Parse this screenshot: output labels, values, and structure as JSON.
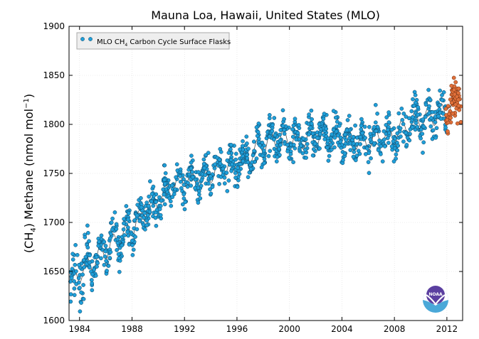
{
  "chart_data": {
    "type": "scatter",
    "title": "Mauna Loa, Hawaii, United States (MLO)",
    "ylabel_parts": {
      "a": "(CH",
      "b": "4",
      "c": ") Methane (nmol mol",
      "d": "−1",
      "e": ")"
    },
    "xlabel": "",
    "xlim": [
      1983.2,
      2013.2
    ],
    "ylim": [
      1600,
      1900
    ],
    "xticks": [
      "1984",
      "1988",
      "1992",
      "1996",
      "2000",
      "2004",
      "2008",
      "2012"
    ],
    "xtick_values": [
      1984,
      1988,
      1992,
      1996,
      2000,
      2004,
      2008,
      2012
    ],
    "yticks": [
      "1600",
      "1650",
      "1700",
      "1750",
      "1800",
      "1850",
      "1900"
    ],
    "ytick_values": [
      1600,
      1650,
      1700,
      1750,
      1800,
      1850,
      1900
    ],
    "grid": true,
    "legend": {
      "placement": "top-left",
      "label_parts": {
        "a": "MLO CH",
        "b": "4",
        "c": " Carbon Cycle Surface Flasks"
      }
    },
    "trend_anchors": {
      "x": [
        1983.3,
        1984,
        1985,
        1986,
        1987,
        1988,
        1989,
        1990,
        1991,
        1992,
        1993,
        1994,
        1995,
        1996,
        1997,
        1998,
        1999,
        2000,
        2001,
        2002,
        2003,
        2004,
        2005,
        2006,
        2007,
        2008,
        2009,
        2010,
        2011,
        2012,
        2013
      ],
      "y": [
        1640,
        1648,
        1660,
        1672,
        1684,
        1695,
        1710,
        1722,
        1735,
        1746,
        1742,
        1750,
        1755,
        1760,
        1770,
        1780,
        1786,
        1785,
        1784,
        1786,
        1790,
        1785,
        1784,
        1782,
        1788,
        1790,
        1800,
        1806,
        1808,
        1815,
        1825
      ]
    },
    "series": [
      {
        "name": "MLO CH4 Carbon Cycle Surface Flasks",
        "color": "#1f9fd9",
        "range": [
          1983.3,
          2012.0
        ]
      },
      {
        "color": "#e0703a",
        "range": [
          2011.9,
          2013.1
        ]
      }
    ],
    "colors": {
      "flask": "#1f9fd9",
      "preliminary": "#e0703a",
      "trend": "#555555",
      "edge": "#0b3d5c"
    }
  },
  "logo": {
    "icon": "noaa-logo-icon",
    "text": "NOAA"
  }
}
